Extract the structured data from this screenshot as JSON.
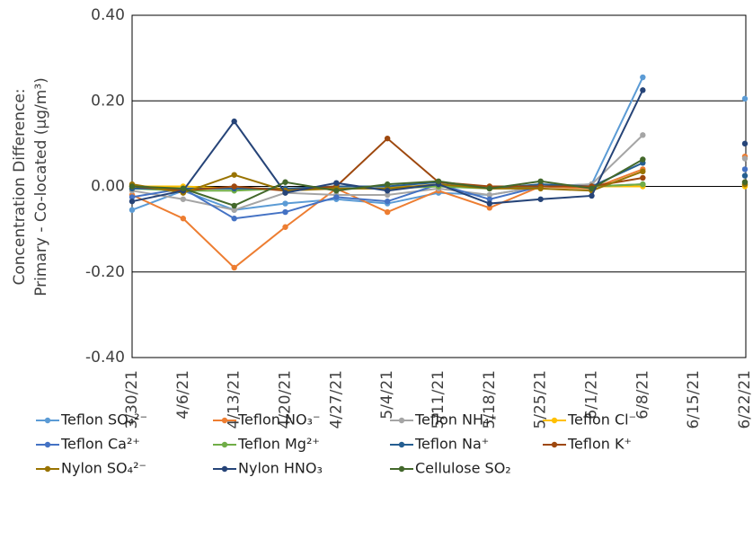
{
  "chart_data": {
    "type": "line",
    "y_label": [
      "Concentration Difference:",
      "Primary - Co-located (µg/m³)"
    ],
    "categories": [
      "3/30/21",
      "4/6/21",
      "4/13/21",
      "4/20/21",
      "4/27/21",
      "5/4/21",
      "5/11/21",
      "5/18/21",
      "5/25/21",
      "6/1/21",
      "6/8/21",
      "6/15/21",
      "6/22/21"
    ],
    "ylim": [
      -0.4,
      0.4
    ],
    "yticks": [
      {
        "value": -0.4,
        "label": "-0.40"
      },
      {
        "value": -0.2,
        "label": "-0.20"
      },
      {
        "value": 0,
        "label": "0.00"
      },
      {
        "value": 0.2,
        "label": "0.20"
      },
      {
        "value": 0.4,
        "label": "0.40"
      }
    ],
    "grid": true,
    "legend": "bottom",
    "series": [
      {
        "name": "Teflon SO₄²⁻",
        "color": "#5b9bd5",
        "values": [
          -0.055,
          -0.01,
          -0.055,
          -0.04,
          -0.03,
          -0.04,
          -0.015,
          -0.02,
          0.0,
          0.005,
          0.255,
          null,
          0.205
        ]
      },
      {
        "name": "Teflon NO₃⁻",
        "color": "#ed7d31",
        "values": [
          -0.02,
          -0.075,
          -0.19,
          -0.095,
          -0.005,
          -0.06,
          -0.01,
          -0.05,
          0.0,
          -0.005,
          0.04,
          null,
          0.07
        ]
      },
      {
        "name": "Teflon NH₄⁺",
        "color": "#a5a5a5",
        "values": [
          -0.01,
          -0.03,
          -0.055,
          -0.015,
          -0.02,
          -0.02,
          -0.005,
          -0.02,
          0.0,
          0.005,
          0.12,
          null,
          0.065
        ]
      },
      {
        "name": "Teflon Cl⁻",
        "color": "#ffc000",
        "values": [
          0.0,
          0.0,
          -0.005,
          -0.005,
          0.0,
          0.0,
          0.0,
          0.0,
          0.0,
          0.0,
          0.0,
          null,
          0.0
        ]
      },
      {
        "name": "Teflon Ca²⁺",
        "color": "#4472c4",
        "values": [
          -0.025,
          -0.005,
          -0.075,
          -0.06,
          -0.025,
          -0.035,
          0.005,
          -0.03,
          0.0,
          0.0,
          0.005,
          null,
          0.04
        ]
      },
      {
        "name": "Teflon Mg²⁺",
        "color": "#70ad47",
        "values": [
          -0.005,
          -0.01,
          -0.01,
          -0.005,
          -0.005,
          -0.005,
          0.0,
          -0.005,
          0.0,
          0.0,
          0.005,
          null,
          0.005
        ]
      },
      {
        "name": "Teflon Na⁺",
        "color": "#255e91",
        "values": [
          -0.005,
          -0.005,
          -0.005,
          -0.005,
          0.0,
          0.0,
          0.01,
          -0.005,
          0.005,
          0.0,
          0.055,
          null,
          0.025
        ]
      },
      {
        "name": "Teflon K⁺",
        "color": "#9e480e",
        "values": [
          0.0,
          -0.01,
          0.0,
          -0.01,
          0.0,
          0.112,
          0.01,
          0.0,
          0.0,
          0.0,
          0.02,
          null,
          0.01
        ]
      },
      {
        "name": "Nylon SO₄²⁻",
        "color": "#997300",
        "values": [
          0.005,
          -0.015,
          0.027,
          -0.01,
          -0.005,
          -0.005,
          0.005,
          -0.005,
          -0.005,
          -0.01,
          0.035,
          null,
          0.005
        ]
      },
      {
        "name": "Nylon HNO₃",
        "color": "#264478",
        "values": [
          -0.035,
          -0.01,
          0.152,
          -0.015,
          0.008,
          -0.01,
          0.005,
          -0.04,
          -0.03,
          -0.022,
          0.225,
          null,
          0.1
        ]
      },
      {
        "name": "Cellulose SO₂",
        "color": "#43682b",
        "values": [
          0.0,
          -0.005,
          -0.045,
          0.01,
          -0.01,
          0.005,
          0.012,
          -0.005,
          0.012,
          -0.005,
          0.063,
          null,
          0.01
        ]
      }
    ]
  }
}
